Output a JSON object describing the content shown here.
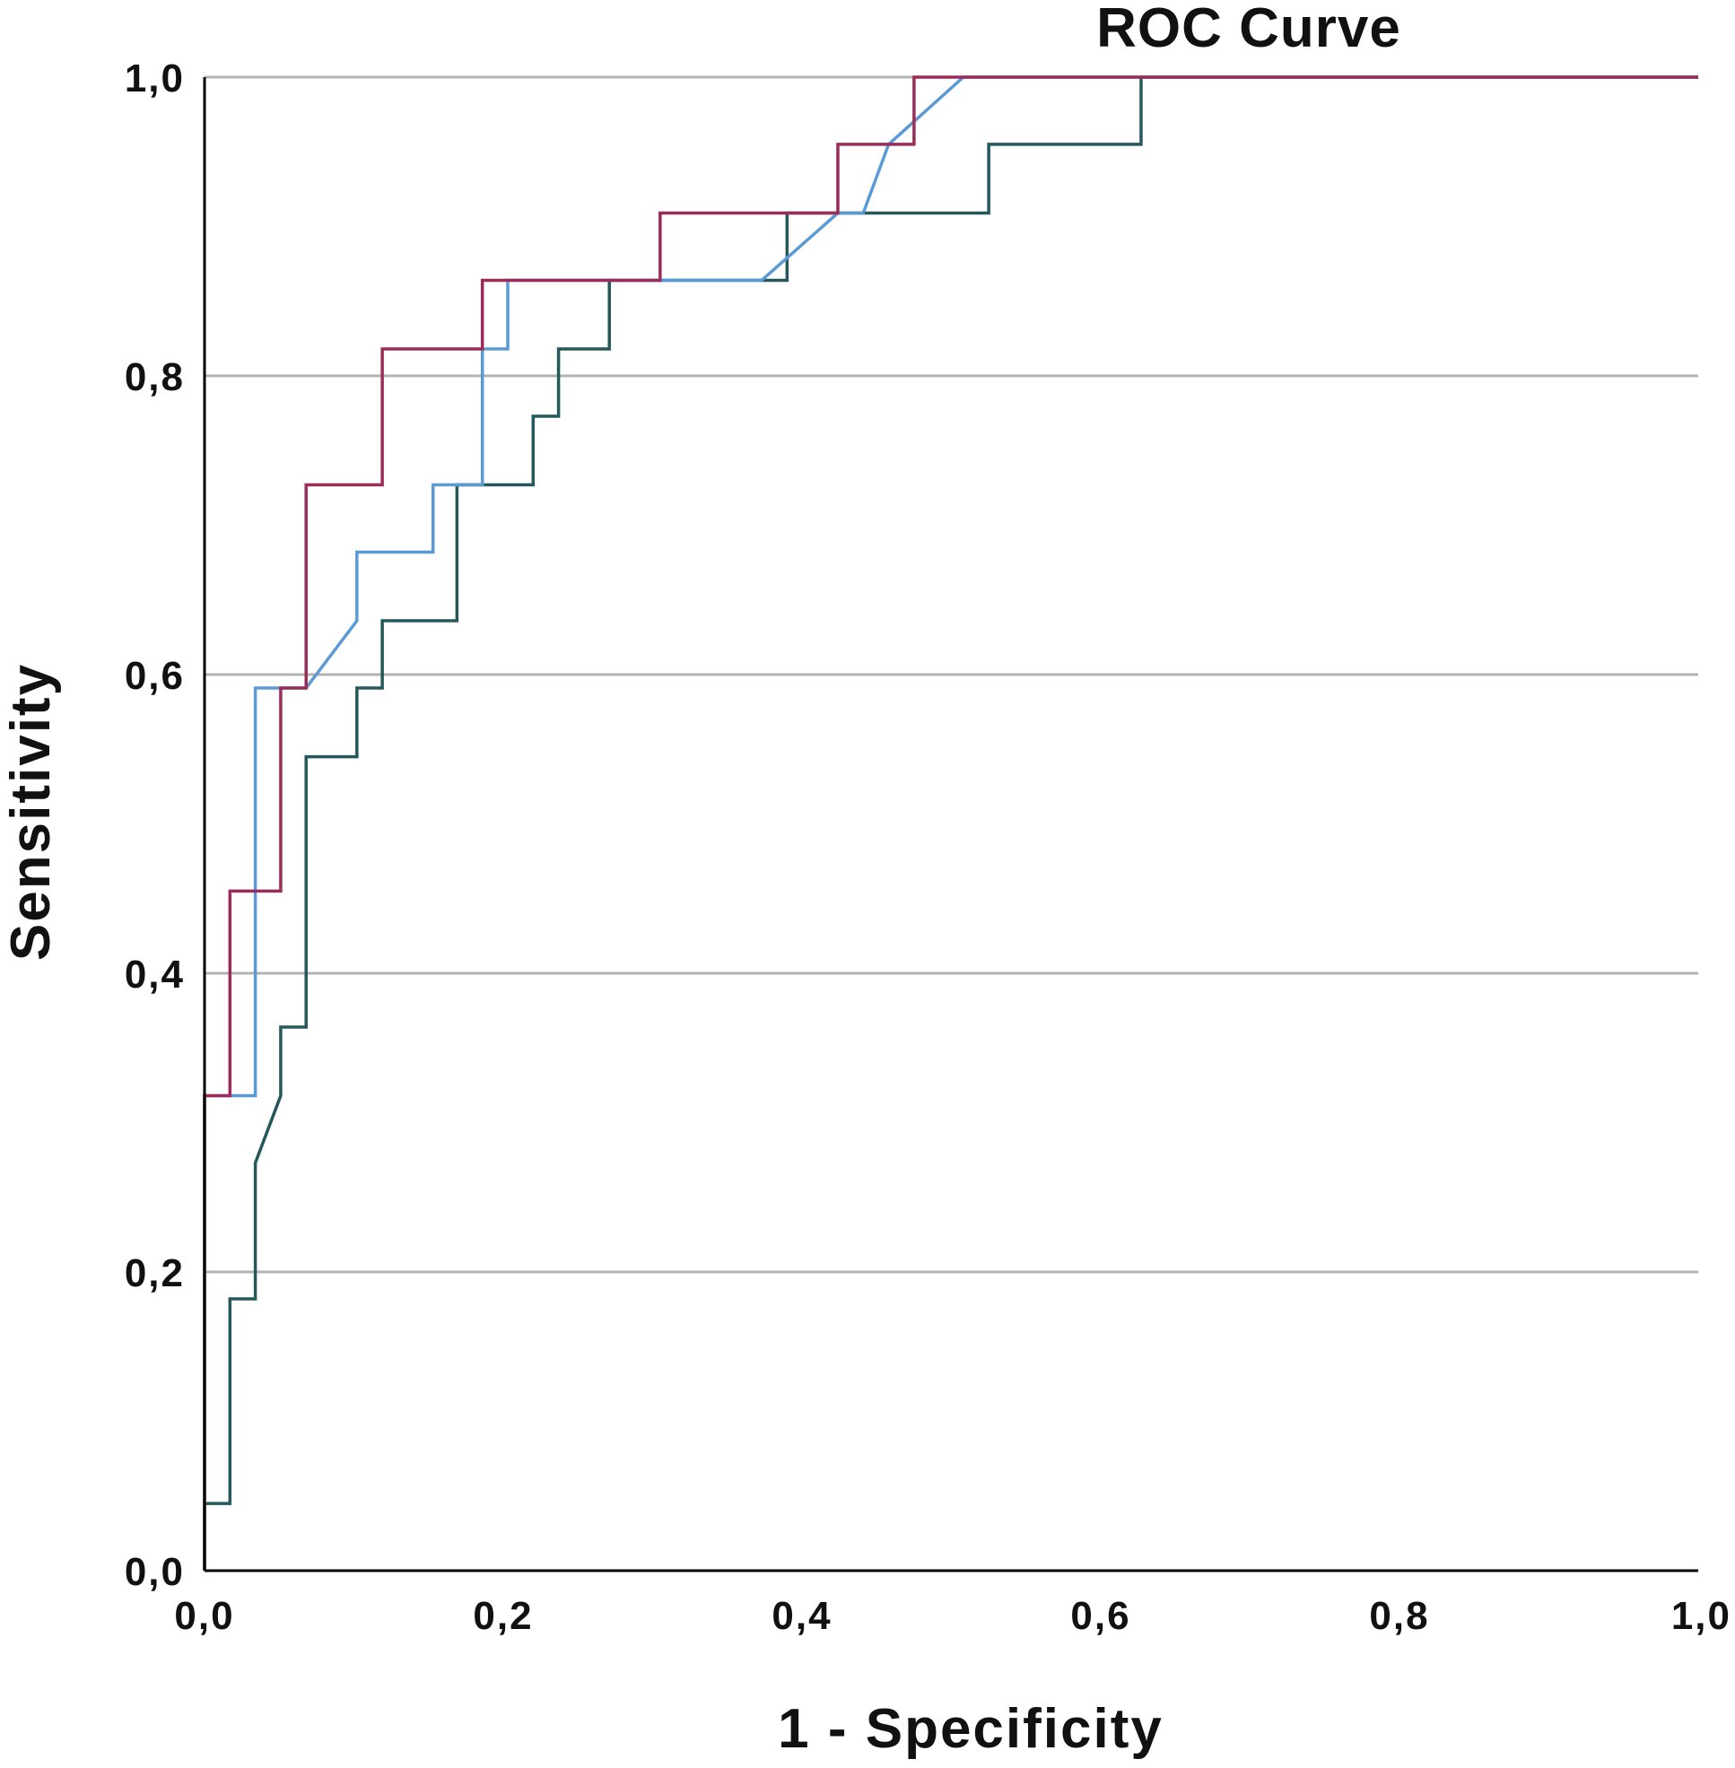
{
  "chart_data": {
    "type": "line",
    "title": "ROC Curve",
    "xlabel": "1 - Specificity",
    "ylabel": "Sensitivity",
    "xlim": [
      0.0,
      1.0
    ],
    "ylim": [
      0.0,
      1.0
    ],
    "x_ticks": [
      0.0,
      0.2,
      0.4,
      0.6,
      0.8,
      1.0
    ],
    "y_ticks": [
      0.0,
      0.2,
      0.4,
      0.6,
      0.8,
      1.0
    ],
    "x_tick_labels": [
      "0,0",
      "0,2",
      "0,4",
      "0,6",
      "0,8",
      "1,0"
    ],
    "y_tick_labels": [
      "0,0",
      "0,2",
      "0,4",
      "0,6",
      "0,8",
      "1,0"
    ],
    "grid": "horizontal",
    "legend": "none",
    "series": [
      {
        "color": "#24585a",
        "points": [
          [
            0.0,
            0.0
          ],
          [
            0.0,
            0.045
          ],
          [
            0.017,
            0.045
          ],
          [
            0.017,
            0.182
          ],
          [
            0.034,
            0.182
          ],
          [
            0.034,
            0.273
          ],
          [
            0.051,
            0.318
          ],
          [
            0.051,
            0.364
          ],
          [
            0.068,
            0.364
          ],
          [
            0.068,
            0.545
          ],
          [
            0.102,
            0.545
          ],
          [
            0.102,
            0.591
          ],
          [
            0.119,
            0.591
          ],
          [
            0.119,
            0.636
          ],
          [
            0.169,
            0.636
          ],
          [
            0.169,
            0.727
          ],
          [
            0.22,
            0.727
          ],
          [
            0.22,
            0.773
          ],
          [
            0.237,
            0.773
          ],
          [
            0.237,
            0.818
          ],
          [
            0.271,
            0.818
          ],
          [
            0.271,
            0.864
          ],
          [
            0.39,
            0.864
          ],
          [
            0.39,
            0.909
          ],
          [
            0.525,
            0.909
          ],
          [
            0.525,
            0.955
          ],
          [
            0.627,
            0.955
          ],
          [
            0.627,
            1.0
          ],
          [
            1.0,
            1.0
          ]
        ]
      },
      {
        "color": "#5b9bd5",
        "points": [
          [
            0.0,
            0.0
          ],
          [
            0.0,
            0.318
          ],
          [
            0.034,
            0.318
          ],
          [
            0.034,
            0.591
          ],
          [
            0.068,
            0.591
          ],
          [
            0.102,
            0.636
          ],
          [
            0.102,
            0.682
          ],
          [
            0.153,
            0.682
          ],
          [
            0.153,
            0.727
          ],
          [
            0.186,
            0.727
          ],
          [
            0.186,
            0.818
          ],
          [
            0.203,
            0.818
          ],
          [
            0.203,
            0.864
          ],
          [
            0.373,
            0.864
          ],
          [
            0.424,
            0.909
          ],
          [
            0.441,
            0.909
          ],
          [
            0.458,
            0.955
          ],
          [
            0.508,
            1.0
          ],
          [
            1.0,
            1.0
          ]
        ]
      },
      {
        "color": "#9b2c5a",
        "points": [
          [
            0.0,
            0.0
          ],
          [
            0.0,
            0.318
          ],
          [
            0.017,
            0.318
          ],
          [
            0.017,
            0.455
          ],
          [
            0.051,
            0.455
          ],
          [
            0.051,
            0.591
          ],
          [
            0.068,
            0.591
          ],
          [
            0.068,
            0.727
          ],
          [
            0.119,
            0.727
          ],
          [
            0.119,
            0.818
          ],
          [
            0.186,
            0.818
          ],
          [
            0.186,
            0.864
          ],
          [
            0.305,
            0.864
          ],
          [
            0.305,
            0.909
          ],
          [
            0.424,
            0.909
          ],
          [
            0.424,
            0.955
          ],
          [
            0.475,
            0.955
          ],
          [
            0.475,
            1.0
          ],
          [
            1.0,
            1.0
          ]
        ]
      }
    ]
  }
}
